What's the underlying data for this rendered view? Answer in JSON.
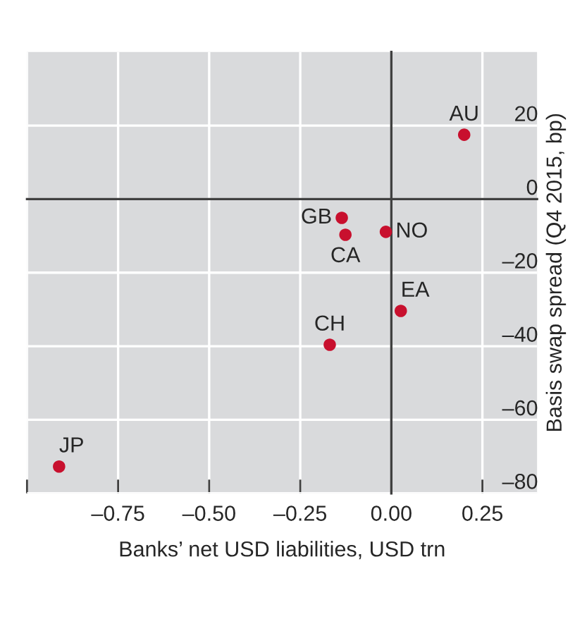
{
  "chart_data": {
    "type": "scatter",
    "xlabel": "Banks’ net USD liabilities, USD trn",
    "ylabel": "Basis swap spread (Q4 2015, bp)",
    "annotations": [
      {
        "text": "AU",
        "x": 0.2,
        "y": 17.5
      },
      {
        "text": "GB",
        "x": -0.136,
        "y": -5.1
      },
      {
        "text": "CA",
        "x": -0.126,
        "y": -9.7
      },
      {
        "text": "NO",
        "x": -0.015,
        "y": -8.9
      },
      {
        "text": "EA",
        "x": 0.026,
        "y": -30.4
      },
      {
        "text": "CH",
        "x": -0.169,
        "y": -39.6
      },
      {
        "text": "JP",
        "x": -0.912,
        "y": -72.7
      }
    ],
    "x": [
      0.2,
      -0.136,
      -0.126,
      -0.015,
      0.026,
      -0.169,
      -0.912
    ],
    "values": [
      17.5,
      -5.1,
      -9.7,
      -8.9,
      -30.4,
      -39.6,
      -72.7
    ],
    "color": "#c8102e",
    "marker": "circle",
    "xlim": [
      -1.0,
      0.4
    ],
    "ylim": [
      -80,
      40
    ],
    "xticks": [
      {
        "value": -1.0,
        "label": null
      },
      {
        "value": -0.75,
        "label": "–0.75"
      },
      {
        "value": -0.5,
        "label": "–0.50"
      },
      {
        "value": -0.25,
        "label": "–0.25"
      },
      {
        "value": 0.0,
        "label": "0.00"
      },
      {
        "value": 0.25,
        "label": "0.25"
      }
    ],
    "yticks": [
      {
        "value": -80,
        "label": "–80"
      },
      {
        "value": -60,
        "label": "–60"
      },
      {
        "value": -40,
        "label": "–40"
      },
      {
        "value": -20,
        "label": "–20"
      },
      0,
      20
    ],
    "grid": true
  }
}
